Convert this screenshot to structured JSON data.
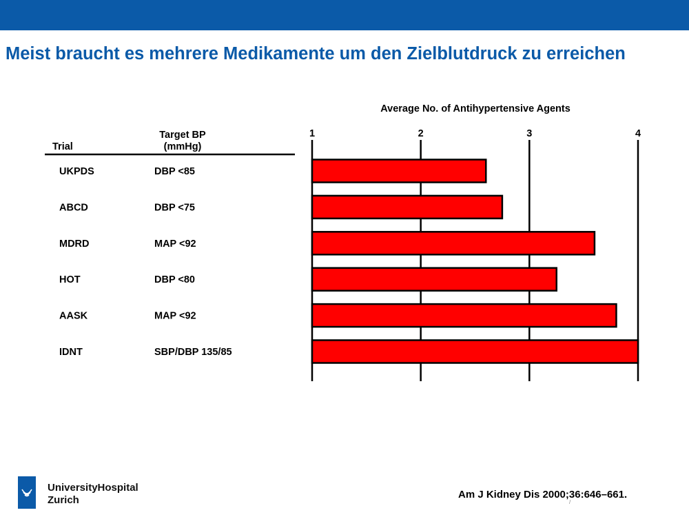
{
  "slide": {
    "title": "Meist braucht es mehrere Medikamente um den Zielblutdruck zu erreichen",
    "citation": "Am J Kidney Dis 2000;36:646–661.",
    "page_mark": "/"
  },
  "logo": {
    "name_line1": "UniversityHospital",
    "name_line2": "Zurich",
    "color": "#0b5aa8"
  },
  "colors": {
    "brand": "#0b5aa8",
    "bar": "#ff0000"
  },
  "chart_data": {
    "type": "bar",
    "orientation": "horizontal",
    "title": "Average No. of Antihypertensive Agents",
    "col_headers": {
      "trial": "Trial",
      "target_line1": "Target BP",
      "target_line2": "(mmHg)"
    },
    "categories": [
      "UKPDS",
      "ABCD",
      "MDRD",
      "HOT",
      "AASK",
      "IDNT"
    ],
    "targets": [
      "DBP <85",
      "DBP <75",
      "MAP <92",
      "DBP <80",
      "MAP <92",
      "SBP/DBP 135/85"
    ],
    "values": [
      2.6,
      2.75,
      3.6,
      3.25,
      3.8,
      4.0
    ],
    "xlim": [
      1,
      4
    ],
    "xticks": [
      1,
      2,
      3,
      4
    ],
    "grid": true,
    "bar_color": "#ff0000"
  }
}
